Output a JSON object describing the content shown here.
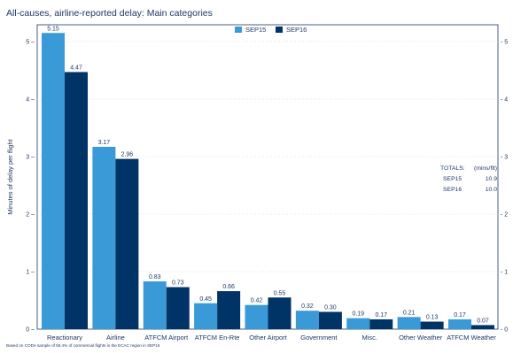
{
  "title": "All-causes, airline-reported delay: Main categories",
  "footnote": "Based on CODA sample of 58.4% of commercial flights in the ECAC region in SEP16",
  "totals": {
    "label": "TOTALS:",
    "unit": "(mins/flt)",
    "rows": [
      {
        "name": "SEP15",
        "value": "10.9"
      },
      {
        "name": "SEP16",
        "value": "10.0"
      }
    ]
  },
  "chart_data": {
    "type": "bar",
    "title": "All-causes, airline-reported delay: Main categories",
    "xlabel": "",
    "ylabel": "Minutes of delay per flight",
    "ylim": [
      0,
      5.3
    ],
    "yticks": [
      0,
      1,
      2,
      3,
      4,
      5
    ],
    "ytick_labels_left": [
      "0 –",
      "1 –",
      "2 –",
      "3 –",
      "4 –",
      "5 –"
    ],
    "ytick_labels_right": [
      "- 0",
      "- 1",
      "- 2",
      "- 3",
      "- 4",
      "- 5"
    ],
    "grid": true,
    "legend": "top-center",
    "categories": [
      "Reactionary",
      "Airline",
      "ATFCM Airport",
      "ATFCM En-Rte",
      "Other Airport",
      "Government",
      "Misc.",
      "Other Weather",
      "ATFCM Weather"
    ],
    "series": [
      {
        "name": "SEP15",
        "color": "#3a9ad7",
        "values": [
          5.15,
          3.17,
          0.83,
          0.45,
          0.42,
          0.32,
          0.19,
          0.21,
          0.17
        ],
        "labels": [
          "5.15",
          "3.17",
          "0.83",
          "0.45",
          "0.42",
          "0.32",
          "0.19",
          "0.21",
          "0.17"
        ]
      },
      {
        "name": "SEP16",
        "color": "#003366",
        "values": [
          4.47,
          2.96,
          0.73,
          0.66,
          0.55,
          0.3,
          0.17,
          0.13,
          0.07
        ],
        "labels": [
          "4.47",
          "2.96",
          "0.73",
          "0.66",
          "0.55",
          "0.30",
          "0.17",
          "0.13",
          "0.07"
        ]
      }
    ]
  }
}
